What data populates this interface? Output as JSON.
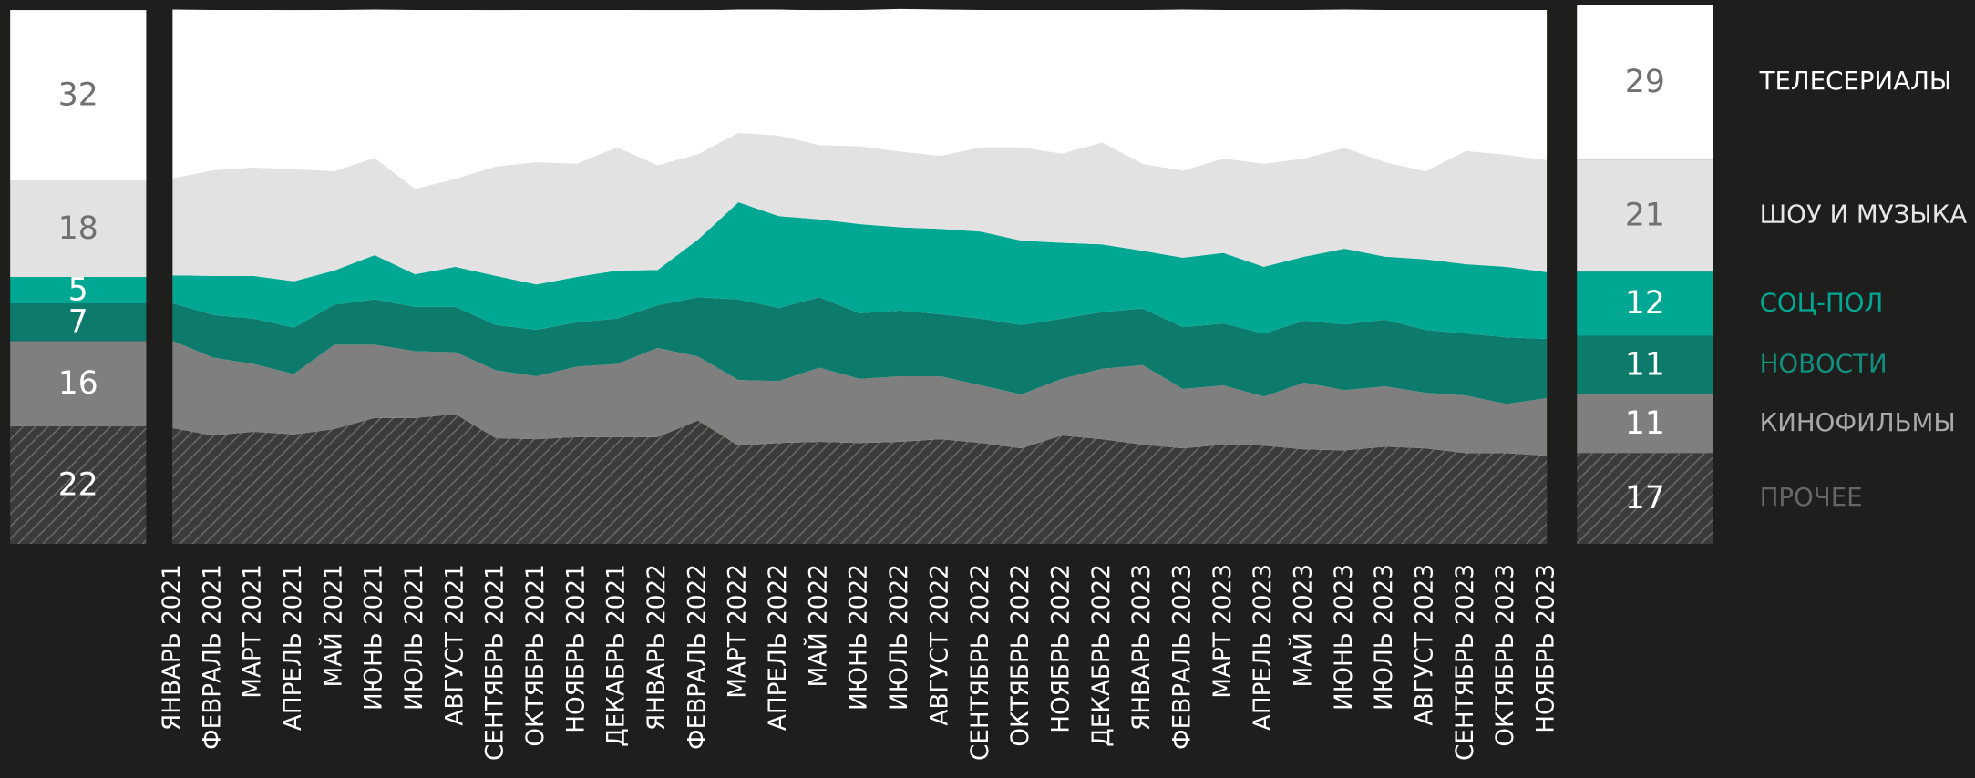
{
  "chart_data": {
    "type": "stacked-area-100",
    "categories": [
      "ЯНВАРЬ 2021",
      "ФЕВРАЛЬ 2021",
      "МАРТ 2021",
      "АПРЕЛЬ 2021",
      "МАЙ 2021",
      "ИЮНЬ 2021",
      "ИЮЛЬ 2021",
      "АВГУСТ 2021",
      "СЕНТЯБРЬ 2021",
      "ОКТЯБРЬ 2021",
      "НОЯБРЬ 2021",
      "ДЕКАБРЬ 2021",
      "ЯНВАРЬ 2022",
      "ФЕВРАЛЬ 2022",
      "МАРТ 2022",
      "АПРЕЛЬ 2022",
      "МАЙ 2022",
      "ИЮНЬ 2022",
      "ИЮЛЬ 2022",
      "АВГУСТ 2022",
      "СЕНТЯБРЬ 2022",
      "ОКТЯБРЬ 2022",
      "НОЯБРЬ 2022",
      "ДЕКАБРЬ 2022",
      "ЯНВАРЬ 2023",
      "ФЕВРАЛЬ 2023",
      "МАРТ 2023",
      "АПРЕЛЬ 2023",
      "МАЙ 2023",
      "ИЮНЬ 2023",
      "ИЮЛЬ 2023",
      "АВГУСТ 2023",
      "СЕНТЯБРЬ 2023",
      "ОКТЯБРЬ 2023",
      "НОЯБРЬ 2023"
    ],
    "ylim": [
      0,
      100
    ],
    "series": [
      {
        "name": "ПРОЧЕЕ",
        "color": "#3b3b3a",
        "label_color": "#666666",
        "pattern": "hatch",
        "start": 22,
        "end": 17,
        "values": [
          21.7,
          20.3,
          21.0,
          20.5,
          21.5,
          23.6,
          23.6,
          24.3,
          19.8,
          19.6,
          20.0,
          20.0,
          20.0,
          23.1,
          18.4,
          18.9,
          19.1,
          18.9,
          19.1,
          19.6,
          18.9,
          17.9,
          20.3,
          19.6,
          18.6,
          17.9,
          18.6,
          18.4,
          17.7,
          17.5,
          18.2,
          17.9,
          17.0,
          17.0,
          16.5
        ]
      },
      {
        "name": "КИНОФИЛЬМЫ",
        "color": "#7f7f7f",
        "label_color": "#a8a8a8",
        "start": 16,
        "end": 11,
        "values": [
          16.3,
          14.6,
          12.7,
          11.3,
          15.8,
          13.7,
          12.5,
          11.6,
          12.7,
          11.8,
          13.2,
          13.7,
          16.7,
          12.0,
          12.3,
          11.6,
          13.9,
          12.0,
          12.3,
          11.8,
          10.8,
          10.1,
          10.6,
          13.2,
          14.9,
          11.1,
          11.1,
          9.2,
          12.5,
          11.3,
          11.3,
          10.4,
          10.8,
          9.2,
          10.8
        ]
      },
      {
        "name": "НОВОСТИ",
        "color": "#0c7b6c",
        "label_color": "#12907f",
        "start": 7,
        "end": 11,
        "values": [
          7.1,
          8.0,
          8.5,
          8.7,
          7.5,
          8.5,
          8.3,
          8.5,
          8.5,
          8.7,
          8.3,
          8.5,
          8.0,
          11.1,
          15.1,
          13.7,
          13.2,
          12.3,
          12.3,
          11.6,
          12.5,
          13.0,
          11.3,
          10.6,
          10.6,
          11.6,
          11.6,
          11.8,
          11.6,
          12.3,
          12.5,
          11.8,
          11.6,
          12.5,
          11.1
        ]
      },
      {
        "name": "СОЦ-ПОЛ",
        "color": "#00a894",
        "label_color": "#00a894",
        "start": 5,
        "end": 12,
        "values": [
          5.2,
          7.3,
          8.0,
          8.7,
          6.4,
          8.3,
          6.1,
          7.5,
          9.2,
          8.5,
          8.5,
          9.0,
          6.6,
          10.8,
          18.2,
          17.2,
          14.6,
          16.7,
          15.6,
          16.0,
          16.3,
          15.8,
          14.2,
          12.7,
          10.8,
          13.0,
          13.2,
          12.5,
          12.0,
          14.2,
          11.8,
          13.2,
          13.0,
          13.2,
          12.5
        ]
      },
      {
        "name": "ШОУ И МУЗЫКА",
        "color": "#e2e2e2",
        "label_color": "#e6e6e6",
        "start": 18,
        "end": 21,
        "values": [
          18.2,
          19.8,
          20.3,
          21.0,
          18.6,
          18.2,
          16.0,
          16.5,
          20.5,
          22.9,
          21.2,
          23.1,
          19.6,
          16.0,
          13.0,
          15.1,
          13.9,
          14.6,
          14.2,
          13.7,
          15.8,
          17.5,
          16.7,
          19.1,
          16.3,
          16.3,
          17.7,
          19.3,
          18.4,
          18.9,
          17.7,
          16.5,
          21.2,
          21.0,
          21.0
        ]
      },
      {
        "name": "ТЕЛЕСЕРИАЛЫ",
        "color": "#ffffff",
        "label_color": "#ffffff",
        "start": 32,
        "end": 29,
        "values": [
          31.6,
          30.0,
          29.5,
          29.7,
          30.2,
          27.8,
          33.5,
          31.6,
          29.2,
          28.5,
          28.8,
          25.7,
          29.0,
          26.9,
          23.1,
          23.6,
          25.2,
          25.5,
          26.7,
          27.4,
          25.7,
          25.7,
          26.9,
          24.8,
          28.8,
          30.2,
          27.8,
          28.8,
          27.8,
          25.9,
          28.5,
          30.2,
          26.4,
          27.1,
          28.1
        ]
      }
    ]
  }
}
